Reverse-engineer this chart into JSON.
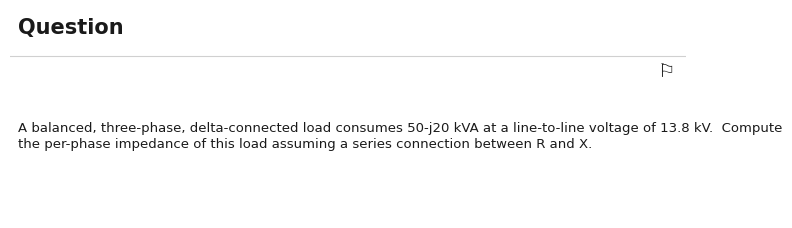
{
  "title": "Question",
  "title_fontsize": 15,
  "title_fontweight": "bold",
  "body_line1": "A balanced, three-phase, delta-connected load consumes 50-j20 kVA at a line-to-line voltage of 13.8 kV.  Compute",
  "body_line2": "the per-phase impedance of this load assuming a series connection between R and X.",
  "body_fontsize": 9.5,
  "flag_char": "⚐",
  "flag_fontsize": 14,
  "background_color": "#ffffff",
  "text_color": "#1a1a1a",
  "separator_color": "#d0d0d0",
  "title_color": "#1a1a1a"
}
